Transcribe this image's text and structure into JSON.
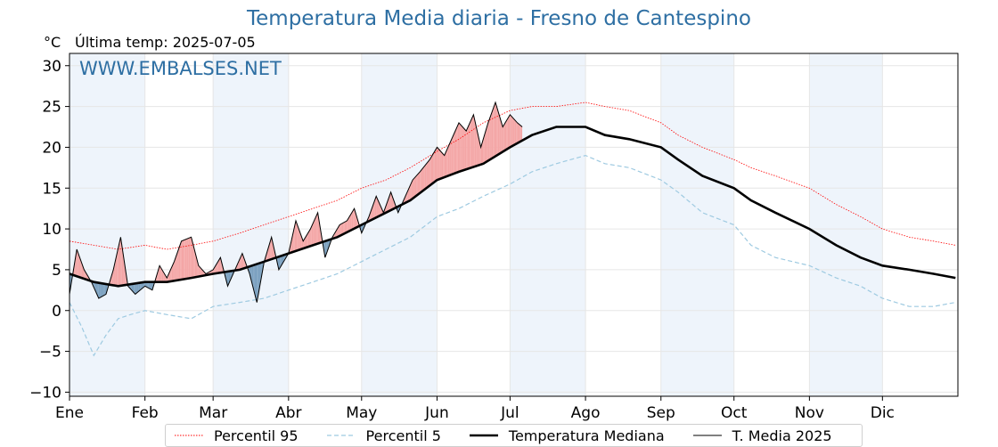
{
  "header": {
    "title": "Temperatura Media diaria - Fresno de Cantespino",
    "unit": "°C",
    "last_temp": "Última temp: 2025-07-05",
    "watermark": "WWW.EMBALSES.NET"
  },
  "legend": {
    "items": [
      {
        "label": "Percentil 95",
        "color": "#ff0000",
        "style": "dotted"
      },
      {
        "label": "Percentil 5",
        "color": "#9ecae1",
        "style": "dashed"
      },
      {
        "label": "Temperatura Mediana",
        "color": "#000000",
        "style": "thick"
      },
      {
        "label": "T. Media 2025",
        "color": "#000000",
        "style": "thin"
      }
    ]
  },
  "colors": {
    "above_fill": "#f4a6a6",
    "below_fill": "#7aa0bf",
    "band_fill": "#eef4fb",
    "grid": "#e6e6e6"
  },
  "chart_data": {
    "type": "line",
    "title": "Temperatura Media diaria - Fresno de Cantespino",
    "xlabel": "",
    "ylabel": "°C",
    "ylim": [
      -10.5,
      31.5
    ],
    "yticks": [
      30,
      25,
      20,
      15,
      10,
      5,
      0,
      -5,
      -10
    ],
    "ytick_labels": [
      "30",
      "25",
      "20",
      "15",
      "10",
      "5",
      "0",
      "−5",
      "−10"
    ],
    "months": [
      "Ene",
      "Feb",
      "Mar",
      "Abr",
      "May",
      "Jun",
      "Jul",
      "Ago",
      "Sep",
      "Oct",
      "Nov",
      "Dic"
    ],
    "month_start_days": [
      0,
      31,
      59,
      90,
      120,
      151,
      181,
      212,
      243,
      273,
      304,
      334
    ],
    "x_max_day": 365,
    "grid": true,
    "legend_position": "bottom",
    "series": [
      {
        "name": "Percentil 95",
        "days": [
          0,
          10,
          20,
          31,
          40,
          50,
          59,
          70,
          80,
          90,
          100,
          110,
          120,
          130,
          140,
          151,
          160,
          170,
          181,
          190,
          200,
          212,
          220,
          230,
          243,
          250,
          260,
          273,
          280,
          290,
          304,
          315,
          325,
          334,
          345,
          355,
          364
        ],
        "values": [
          8.5,
          8.0,
          7.5,
          8.0,
          7.5,
          8.0,
          8.5,
          9.5,
          10.5,
          11.5,
          12.5,
          13.5,
          15.0,
          16.0,
          17.5,
          19.5,
          21.0,
          23.0,
          24.5,
          25.0,
          25.0,
          25.5,
          25.0,
          24.5,
          23.0,
          21.5,
          20.0,
          18.5,
          17.5,
          16.5,
          15.0,
          13.0,
          11.5,
          10.0,
          9.0,
          8.5,
          8.0
        ]
      },
      {
        "name": "Percentil 5",
        "days": [
          0,
          5,
          10,
          15,
          20,
          25,
          31,
          40,
          50,
          59,
          70,
          80,
          90,
          100,
          110,
          120,
          130,
          140,
          151,
          160,
          170,
          181,
          190,
          200,
          212,
          220,
          230,
          243,
          250,
          260,
          273,
          280,
          290,
          304,
          315,
          325,
          334,
          345,
          355,
          364
        ],
        "values": [
          1.0,
          -2.0,
          -5.5,
          -3.0,
          -1.0,
          -0.5,
          0.0,
          -0.5,
          -1.0,
          0.5,
          1.0,
          1.5,
          2.5,
          3.5,
          4.5,
          6.0,
          7.5,
          9.0,
          11.5,
          12.5,
          14.0,
          15.5,
          17.0,
          18.0,
          19.0,
          18.0,
          17.5,
          16.0,
          14.5,
          12.0,
          10.5,
          8.0,
          6.5,
          5.5,
          4.0,
          3.0,
          1.5,
          0.5,
          0.5,
          1.0
        ]
      },
      {
        "name": "Temperatura Mediana",
        "days": [
          0,
          10,
          20,
          31,
          40,
          50,
          59,
          70,
          80,
          90,
          100,
          110,
          120,
          130,
          140,
          151,
          160,
          170,
          181,
          190,
          200,
          212,
          220,
          230,
          243,
          250,
          260,
          273,
          280,
          290,
          304,
          315,
          325,
          334,
          345,
          355,
          364
        ],
        "values": [
          4.5,
          3.5,
          3.0,
          3.5,
          3.5,
          4.0,
          4.5,
          5.0,
          6.0,
          7.0,
          8.0,
          9.0,
          10.5,
          12.0,
          13.5,
          16.0,
          17.0,
          18.0,
          20.0,
          21.5,
          22.5,
          22.5,
          21.5,
          21.0,
          20.0,
          18.5,
          16.5,
          15.0,
          13.5,
          12.0,
          10.0,
          8.0,
          6.5,
          5.5,
          5.0,
          4.5,
          4.0
        ]
      },
      {
        "name": "T. Media 2025",
        "days": [
          0,
          3,
          6,
          9,
          12,
          15,
          18,
          21,
          24,
          27,
          31,
          34,
          37,
          40,
          43,
          46,
          50,
          53,
          56,
          59,
          62,
          65,
          68,
          71,
          74,
          77,
          80,
          83,
          86,
          90,
          93,
          96,
          99,
          102,
          105,
          108,
          111,
          114,
          117,
          120,
          123,
          126,
          129,
          132,
          135,
          138,
          141,
          144,
          148,
          151,
          154,
          157,
          160,
          163,
          166,
          169,
          172,
          175,
          178,
          181,
          184,
          186
        ],
        "values": [
          2.0,
          7.5,
          5.0,
          3.5,
          1.5,
          2.0,
          5.0,
          9.0,
          3.0,
          2.0,
          3.0,
          2.5,
          5.5,
          4.0,
          6.0,
          8.5,
          9.0,
          5.5,
          4.5,
          5.0,
          6.5,
          3.0,
          5.0,
          7.0,
          4.5,
          1.0,
          6.0,
          9.0,
          5.0,
          7.0,
          11.0,
          8.5,
          10.0,
          12.0,
          6.5,
          9.0,
          10.5,
          11.0,
          12.5,
          9.5,
          11.5,
          14.0,
          12.0,
          14.5,
          12.0,
          14.0,
          16.0,
          17.0,
          18.5,
          20.0,
          19.0,
          21.0,
          23.0,
          22.0,
          24.0,
          20.0,
          23.0,
          25.5,
          22.5,
          24.0,
          23.0,
          22.5
        ]
      }
    ]
  }
}
